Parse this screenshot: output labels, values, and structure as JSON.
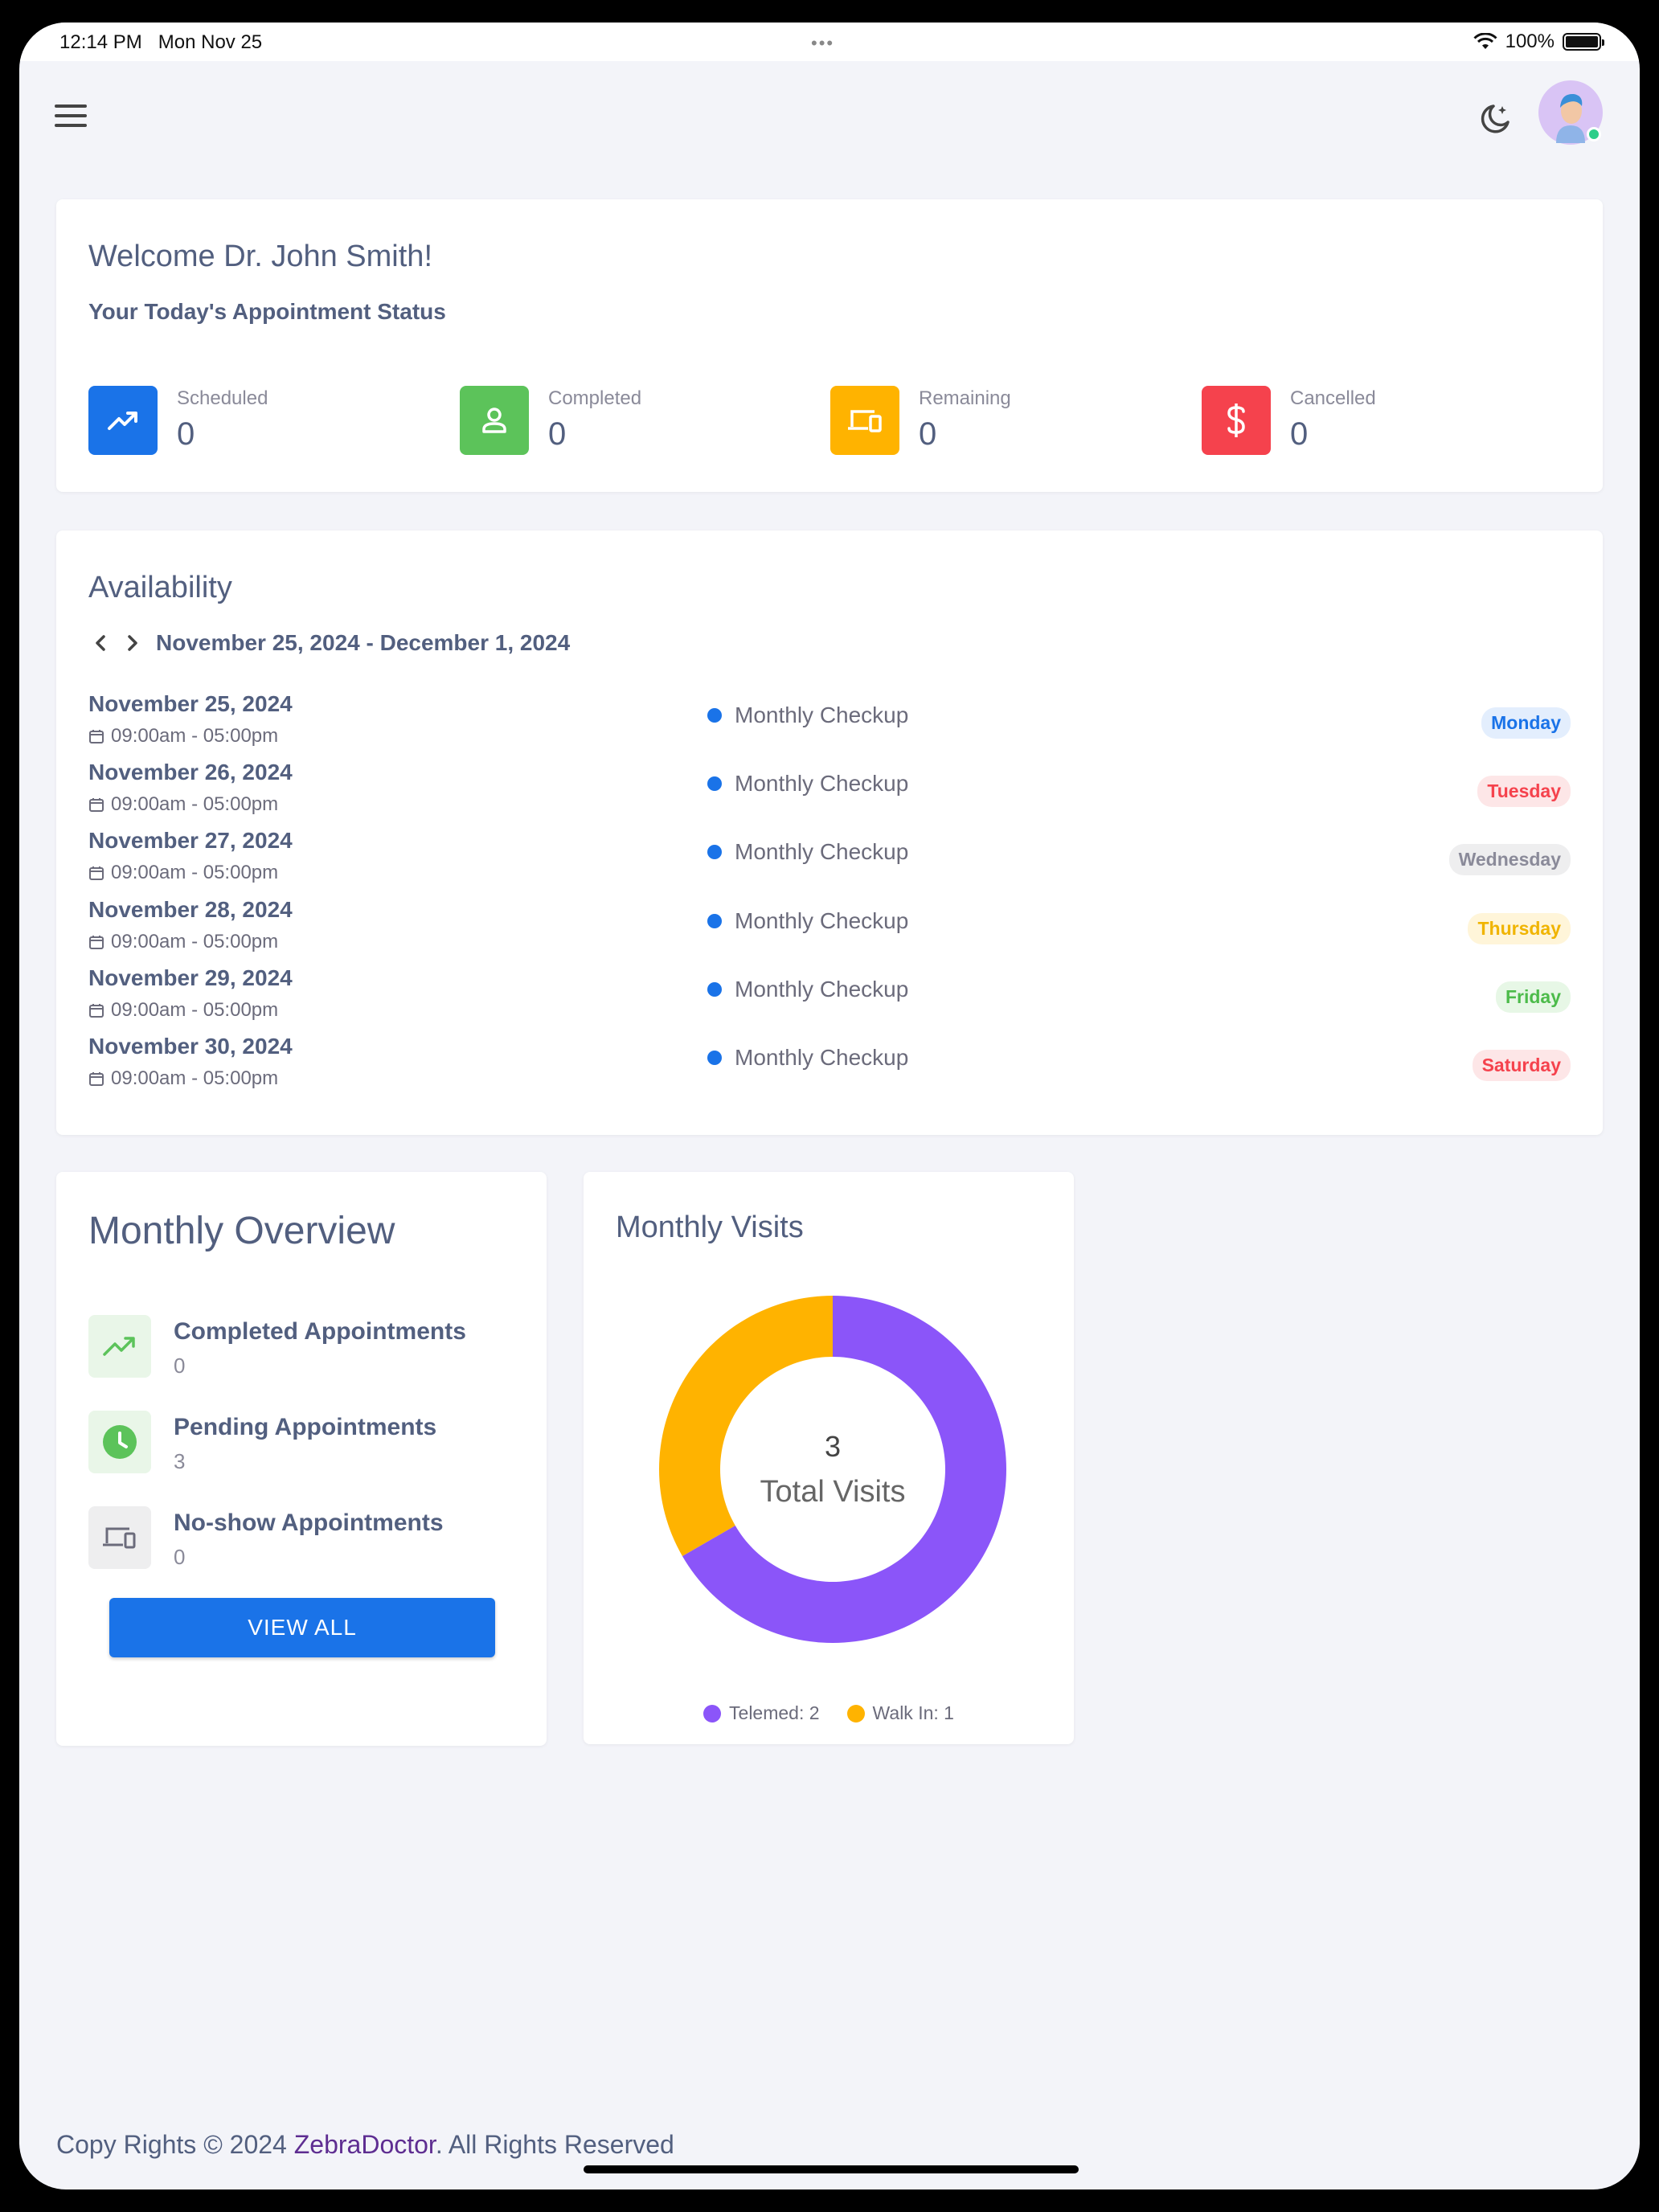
{
  "status_bar": {
    "time": "12:14 PM",
    "date": "Mon Nov 25",
    "battery": "100%"
  },
  "welcome": {
    "title": "Welcome Dr. John Smith!",
    "subtitle": "Your Today's Appointment Status",
    "stats": [
      {
        "label": "Scheduled",
        "value": "0",
        "icon": "trending-up-icon",
        "color": "#1a73e8"
      },
      {
        "label": "Completed",
        "value": "0",
        "icon": "person-icon",
        "color": "#5cc35a"
      },
      {
        "label": "Remaining",
        "value": "0",
        "icon": "devices-icon",
        "color": "#ffb300"
      },
      {
        "label": "Cancelled",
        "value": "0",
        "icon": "dollar-icon",
        "color": "#f5424d"
      }
    ]
  },
  "availability": {
    "title": "Availability",
    "week_label": "November 25, 2024 - December 1, 2024",
    "rows": [
      {
        "date": "November 25, 2024",
        "time": "09:00am - 05:00pm",
        "event": "Monthly Checkup",
        "day": "Monday",
        "day_color": "#1a73e8",
        "day_bg": "#e3eefd"
      },
      {
        "date": "November 26, 2024",
        "time": "09:00am - 05:00pm",
        "event": "Monthly Checkup",
        "day": "Tuesday",
        "day_color": "#f5424d",
        "day_bg": "#fde6e7"
      },
      {
        "date": "November 27, 2024",
        "time": "09:00am - 05:00pm",
        "event": "Monthly Checkup",
        "day": "Wednesday",
        "day_color": "#8a8a99",
        "day_bg": "#eeeeef"
      },
      {
        "date": "November 28, 2024",
        "time": "09:00am - 05:00pm",
        "event": "Monthly Checkup",
        "day": "Thursday",
        "day_color": "#f0b400",
        "day_bg": "#fff5d9"
      },
      {
        "date": "November 29, 2024",
        "time": "09:00am - 05:00pm",
        "event": "Monthly Checkup",
        "day": "Friday",
        "day_color": "#4cbb4a",
        "day_bg": "#e7f7e6"
      },
      {
        "date": "November 30, 2024",
        "time": "09:00am - 05:00pm",
        "event": "Monthly Checkup",
        "day": "Saturday",
        "day_color": "#f5424d",
        "day_bg": "#fde6e7"
      }
    ]
  },
  "overview": {
    "title": "Monthly Overview",
    "items": [
      {
        "label": "Completed Appointments",
        "value": "0",
        "icon": "trending-up-icon",
        "color": "#5cc35a",
        "bg": "#e9f6e8"
      },
      {
        "label": "Pending Appointments",
        "value": "3",
        "icon": "clock-icon",
        "color": "#5cc35a",
        "bg": "#e9f6e8"
      },
      {
        "label": "No-show Appointments",
        "value": "0",
        "icon": "devices-icon",
        "color": "#6b6b7b",
        "bg": "#eeeeef"
      }
    ],
    "button": "VIEW ALL"
  },
  "visits": {
    "title": "Monthly Visits",
    "total": "3",
    "total_label": "Total Visits",
    "legend": [
      "Telemed: 2",
      "Walk In: 1"
    ]
  },
  "chart_data": {
    "type": "pie",
    "categories": [
      "Telemed",
      "Walk In"
    ],
    "values": [
      2,
      1
    ],
    "colors": [
      "#8b55f9",
      "#ffb300"
    ],
    "title": "Monthly Visits"
  },
  "footer": {
    "prefix": "Copy Rights © 2024 ",
    "brand": "ZebraDoctor",
    "suffix": ". All Rights Reserved"
  }
}
